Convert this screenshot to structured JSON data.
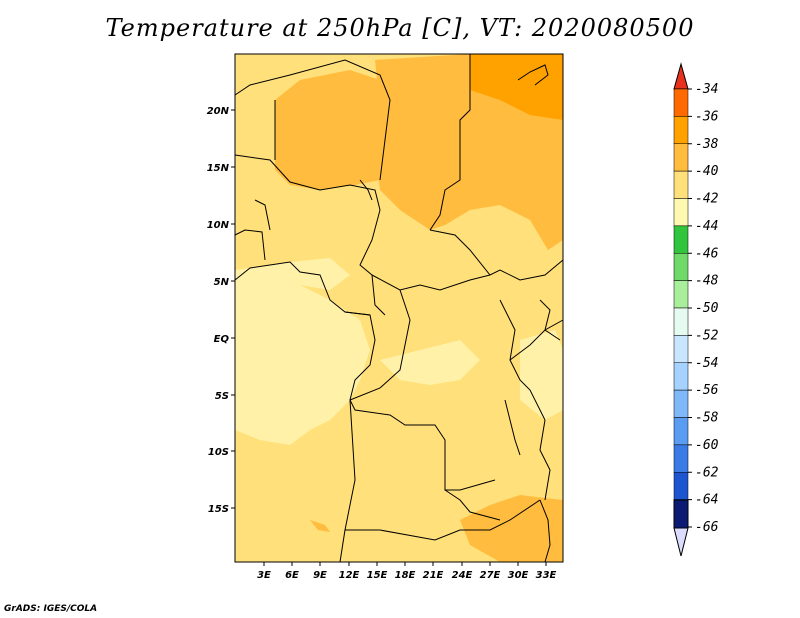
{
  "title": "Temperature at 250hPa [C], VT: 2020080500",
  "footer": "GrADS: IGES/COLA",
  "map": {
    "lon_ticks": [
      "3E",
      "6E",
      "9E",
      "12E",
      "15E",
      "18E",
      "21E",
      "24E",
      "27E",
      "30E",
      "33E"
    ],
    "lat_ticks": [
      "20N",
      "15N",
      "10N",
      "5N",
      "EQ",
      "5S",
      "10S",
      "15S"
    ]
  },
  "colorbar": {
    "levels": [
      {
        "label": "-34",
        "color": "#ff3300"
      },
      {
        "label": "-36",
        "color": "#ff6a00"
      },
      {
        "label": "-38",
        "color": "#ffa200"
      },
      {
        "label": "-40",
        "color": "#ffbc3e"
      },
      {
        "label": "-42",
        "color": "#ffe07a"
      },
      {
        "label": "-44",
        "color": "#fff8b0"
      },
      {
        "label": "-46",
        "color": "#33c43d"
      },
      {
        "label": "-48",
        "color": "#6fd96a"
      },
      {
        "label": "-50",
        "color": "#a9ee9a"
      },
      {
        "label": "-52",
        "color": "#e5fbef"
      },
      {
        "label": "-54",
        "color": "#c8e6ff"
      },
      {
        "label": "-56",
        "color": "#a6d2ff"
      },
      {
        "label": "-58",
        "color": "#7fb9f9"
      },
      {
        "label": "-60",
        "color": "#5a9cf1"
      },
      {
        "label": "-62",
        "color": "#3a7be5"
      },
      {
        "label": "-64",
        "color": "#1c55cf"
      },
      {
        "label": "-66",
        "color": "#0a2da6"
      }
    ],
    "top_triangle_color": "#e8321e",
    "bottom_block_color": "#0b1b74",
    "bottom_triangle_color": "#dcdcff"
  }
}
